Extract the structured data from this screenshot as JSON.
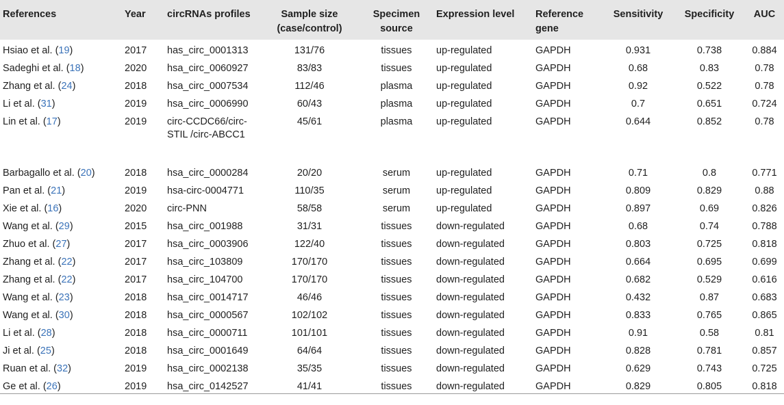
{
  "columns": [
    "References",
    "Year",
    "circRNAs profiles",
    "Sample size (case/control)",
    "Specimen source",
    "Expression level",
    "Reference gene",
    "Sensitivity",
    "Specificity",
    "AUC"
  ],
  "rows": [
    {
      "ref_name": "Hsiao et al. (",
      "ref_num": "19",
      "ref_end": ")",
      "year": "2017",
      "profile": "has_circ_0001313",
      "sample": "131/76",
      "source": "tissues",
      "expression": "up-regulated",
      "gene": "GAPDH",
      "sensitivity": "0.931",
      "specificity": "0.738",
      "auc": "0.884"
    },
    {
      "ref_name": "Sadeghi et al. (",
      "ref_num": "18",
      "ref_end": ")",
      "year": "2020",
      "profile": "hsa_circ_0060927",
      "sample": "83/83",
      "source": "tissues",
      "expression": "up-regulated",
      "gene": "GAPDH",
      "sensitivity": "0.68",
      "specificity": "0.83",
      "auc": "0.78"
    },
    {
      "ref_name": "Zhang et al. (",
      "ref_num": "24",
      "ref_end": ")",
      "year": "2018",
      "profile": "hsa_circ_0007534",
      "sample": "112/46",
      "source": "plasma",
      "expression": "up-regulated",
      "gene": "GAPDH",
      "sensitivity": "0.92",
      "specificity": "0.522",
      "auc": "0.78"
    },
    {
      "ref_name": "Li et al. (",
      "ref_num": "31",
      "ref_end": ")",
      "year": "2019",
      "profile": "hsa_circ_0006990",
      "sample": "60/43",
      "source": "plasma",
      "expression": "up-regulated",
      "gene": "GAPDH",
      "sensitivity": "0.7",
      "specificity": "0.651",
      "auc": "0.724"
    },
    {
      "ref_name": "Lin et al. (",
      "ref_num": "17",
      "ref_end": ")",
      "year": "2019",
      "profile": "circ-CCDC66/circ-STIL /circ-ABCC1",
      "sample": "45/61",
      "source": "plasma",
      "expression": "up-regulated",
      "gene": "GAPDH",
      "sensitivity": "0.644",
      "specificity": "0.852",
      "auc": "0.78",
      "tall": true
    },
    {
      "ref_name": "Barbagallo et al. (",
      "ref_num": "20",
      "ref_end": ")",
      "year": "2018",
      "profile": "hsa_circ_0000284",
      "sample": "20/20",
      "source": "serum",
      "expression": "up-regulated",
      "gene": "GAPDH",
      "sensitivity": "0.71",
      "specificity": "0.8",
      "auc": "0.771"
    },
    {
      "ref_name": "Pan et al. (",
      "ref_num": "21",
      "ref_end": ")",
      "year": "2019",
      "profile": "hsa-circ-0004771",
      "sample": "110/35",
      "source": "serum",
      "expression": "up-regulated",
      "gene": "GAPDH",
      "sensitivity": "0.809",
      "specificity": "0.829",
      "auc": "0.88"
    },
    {
      "ref_name": "Xie et al. (",
      "ref_num": "16",
      "ref_end": ")",
      "year": "2020",
      "profile": "circ-PNN",
      "sample": "58/58",
      "source": "serum",
      "expression": "up-regulated",
      "gene": "GAPDH",
      "sensitivity": "0.897",
      "specificity": "0.69",
      "auc": "0.826"
    },
    {
      "ref_name": "Wang et al. (",
      "ref_num": "29",
      "ref_end": ")",
      "year": "2015",
      "profile": "hsa_circ_001988",
      "sample": "31/31",
      "source": "tissues",
      "expression": "down-regulated",
      "gene": "GAPDH",
      "sensitivity": "0.68",
      "specificity": "0.74",
      "auc": "0.788"
    },
    {
      "ref_name": "Zhuo et al. (",
      "ref_num": "27",
      "ref_end": ")",
      "year": "2017",
      "profile": "hsa_circ_0003906",
      "sample": "122/40",
      "source": "tissues",
      "expression": "down-regulated",
      "gene": "GAPDH",
      "sensitivity": "0.803",
      "specificity": "0.725",
      "auc": "0.818"
    },
    {
      "ref_name": "Zhang et al. (",
      "ref_num": "22",
      "ref_end": ")",
      "year": "2017",
      "profile": "hsa_circ_103809",
      "sample": "170/170",
      "source": "tissues",
      "expression": "down-regulated",
      "gene": "GAPDH",
      "sensitivity": "0.664",
      "specificity": "0.695",
      "auc": "0.699"
    },
    {
      "ref_name": "Zhang et al. (",
      "ref_num": "22",
      "ref_end": ")",
      "year": "2017",
      "profile": "hsa_circ_104700",
      "sample": "170/170",
      "source": "tissues",
      "expression": "down-regulated",
      "gene": "GAPDH",
      "sensitivity": "0.682",
      "specificity": "0.529",
      "auc": "0.616"
    },
    {
      "ref_name": "Wang et al. (",
      "ref_num": "23",
      "ref_end": ")",
      "year": "2018",
      "profile": "hsa_circ_0014717",
      "sample": "46/46",
      "source": "tissues",
      "expression": "down-regulated",
      "gene": "GAPDH",
      "sensitivity": "0.432",
      "specificity": "0.87",
      "auc": "0.683"
    },
    {
      "ref_name": "Wang et al. (",
      "ref_num": "30",
      "ref_end": ")",
      "year": "2018",
      "profile": "hsa_circ_0000567",
      "sample": "102/102",
      "source": "tissues",
      "expression": "down-regulated",
      "gene": "GAPDH",
      "sensitivity": "0.833",
      "specificity": "0.765",
      "auc": "0.865"
    },
    {
      "ref_name": "Li et al. (",
      "ref_num": "28",
      "ref_end": ")",
      "year": "2018",
      "profile": "hsa_circ_0000711",
      "sample": "101/101",
      "source": "tissues",
      "expression": "down-regulated",
      "gene": "GAPDH",
      "sensitivity": "0.91",
      "specificity": "0.58",
      "auc": "0.81"
    },
    {
      "ref_name": "Ji et al. (",
      "ref_num": "25",
      "ref_end": ")",
      "year": "2018",
      "profile": "hsa_circ_0001649",
      "sample": "64/64",
      "source": "tissues",
      "expression": "down-regulated",
      "gene": "GAPDH",
      "sensitivity": "0.828",
      "specificity": "0.781",
      "auc": "0.857"
    },
    {
      "ref_name": "Ruan et al. (",
      "ref_num": "32",
      "ref_end": ")",
      "year": "2019",
      "profile": "hsa_circ_0002138",
      "sample": "35/35",
      "source": "tissues",
      "expression": "down-regulated",
      "gene": "GAPDH",
      "sensitivity": "0.629",
      "specificity": "0.743",
      "auc": "0.725"
    },
    {
      "ref_name": "Ge et al. (",
      "ref_num": "26",
      "ref_end": ")",
      "year": "2019",
      "profile": "hsa_circ_0142527",
      "sample": "41/41",
      "source": "tissues",
      "expression": "down-regulated",
      "gene": "GAPDH",
      "sensitivity": "0.829",
      "specificity": "0.805",
      "auc": "0.818"
    }
  ],
  "colors": {
    "header_bg": "#e6e6e6",
    "ref_link": "#3b73b9",
    "text": "#1f1f1f"
  }
}
